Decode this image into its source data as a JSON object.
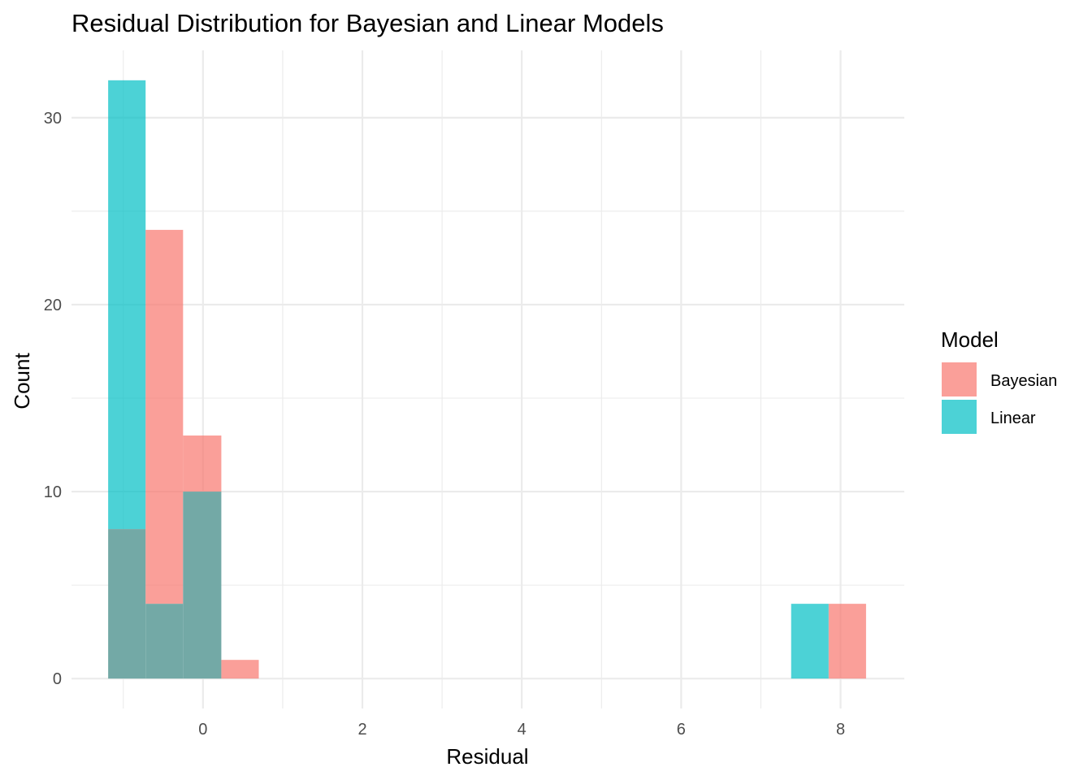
{
  "chart_data": {
    "type": "bar",
    "subtype": "histogram-overlay",
    "title": "Residual Distribution for Bayesian and Linear Models",
    "xlabel": "Residual",
    "ylabel": "Count",
    "xlim": [
      -1.65,
      8.8
    ],
    "ylim": [
      -1.6,
      33.6
    ],
    "x_ticks": [
      0,
      2,
      4,
      6,
      8
    ],
    "y_ticks": [
      0,
      10,
      20,
      30
    ],
    "x_tick_labels": [
      "0",
      "2",
      "4",
      "6",
      "8"
    ],
    "y_tick_labels": [
      "0",
      "10",
      "20",
      "30"
    ],
    "grid": true,
    "overlap_color": "#73a9a6",
    "legend": {
      "title": "Model",
      "position": "right"
    },
    "series": [
      {
        "name": "Bayesian",
        "color": "#f8766d",
        "bins": [
          {
            "x0": -1.19,
            "x1": -0.72,
            "count": 8
          },
          {
            "x0": -0.72,
            "x1": -0.25,
            "count": 24
          },
          {
            "x0": -0.25,
            "x1": 0.23,
            "count": 13
          },
          {
            "x0": 0.23,
            "x1": 0.7,
            "count": 1
          },
          {
            "x0": 7.85,
            "x1": 8.32,
            "count": 4
          }
        ]
      },
      {
        "name": "Linear",
        "color": "#00bfc4",
        "bins": [
          {
            "x0": -1.19,
            "x1": -0.72,
            "count": 32
          },
          {
            "x0": -0.72,
            "x1": -0.25,
            "count": 4
          },
          {
            "x0": -0.25,
            "x1": 0.23,
            "count": 10
          },
          {
            "x0": 7.38,
            "x1": 7.85,
            "count": 4
          }
        ]
      }
    ]
  }
}
